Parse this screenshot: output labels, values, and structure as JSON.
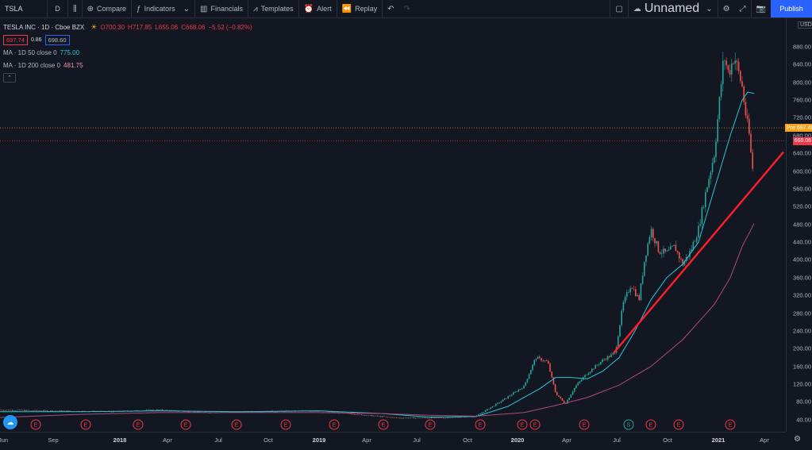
{
  "toolbar": {
    "symbol": "TSLA",
    "interval": "D",
    "compare": "Compare",
    "indicators": "Indicators",
    "financials": "Financials",
    "templates": "Templates",
    "alert": "Alert",
    "replay": "Replay",
    "layout_name": "Unnamed",
    "publish": "Publish"
  },
  "legend": {
    "title": "TESLA INC · 1D · Cboe BZX",
    "open": "O700.30",
    "high": "H717.85",
    "low": "L655.06",
    "close": "C668.06",
    "change": "−5.52 (−0.82%)",
    "bid": "697.74",
    "spread": "0.86",
    "ask": "698.60",
    "ma50_label": "MA · 1D 50 close 0",
    "ma50_value": "775.00",
    "ma200_label": "MA · 1D 200 close 0",
    "ma200_value": "481.75"
  },
  "price_axis": {
    "currency": "USD",
    "ticks": [
      "880.00",
      "840.00",
      "800.00",
      "760.00",
      "720.00",
      "680.00",
      "640.00",
      "600.00",
      "560.00",
      "520.00",
      "480.00",
      "440.00",
      "400.00",
      "360.00",
      "320.00",
      "280.00",
      "240.00",
      "200.00",
      "160.00",
      "120.00",
      "80.00",
      "40.00"
    ],
    "pre_label": "Pre",
    "pre_value": "697.49",
    "last_value": "668.06"
  },
  "time_axis": {
    "labels": [
      "Jun",
      "Sep",
      "2018",
      "Apr",
      "Jul",
      "Oct",
      "2019",
      "Apr",
      "Jul",
      "Oct",
      "2020",
      "Apr",
      "Jul",
      "Oct",
      "2021",
      "Apr"
    ]
  },
  "colors": {
    "up": "#26a69a",
    "down": "#ef5350",
    "ma50": "#26c6da",
    "ma200": "#ad4a7a",
    "trend": "#ff1f2a",
    "pre_line": "#f7a21b",
    "last_line": "#f23645",
    "accent": "#2962ff"
  },
  "events": [
    "E",
    "E",
    "E",
    "E",
    "E",
    "E",
    "E",
    "E",
    "E",
    "E",
    "E",
    "E",
    "E",
    "S",
    "E",
    "E",
    "E"
  ]
}
